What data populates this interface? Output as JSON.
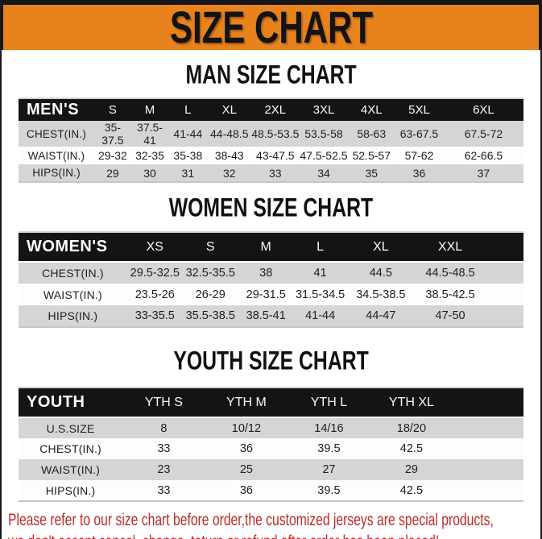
{
  "banner": {
    "title": "SIZE CHART"
  },
  "colors": {
    "banner_orange": "#E7821C",
    "header_black": "#141414",
    "row_gray": "#D5D5D5",
    "footer_red": "#BE2A28"
  },
  "sections": [
    {
      "heading": "MAN SIZE CHART",
      "table": {
        "header": [
          "MEN'S",
          "S",
          "M",
          "L",
          "XL",
          "2XL",
          "3XL",
          "4XL",
          "5XL",
          "6XL"
        ],
        "rows": [
          {
            "label": "CHEST(IN.)",
            "values": [
              "35-37.5",
              "37.5-41",
              "41-44",
              "44-48.5",
              "48.5-53.5",
              "53.5-58",
              "58-63",
              "63-67.5",
              "67.5-72"
            ]
          },
          {
            "label": "WAIST(IN.)",
            "values": [
              "29-32",
              "32-35",
              "35-38",
              "38-43",
              "43-47.5",
              "47.5-52.5",
              "52.5-57",
              "57-62",
              "62-66.5"
            ]
          },
          {
            "label": "HIPS(IN.)",
            "values": [
              "29",
              "30",
              "31",
              "32",
              "33",
              "34",
              "35",
              "36",
              "37"
            ]
          }
        ]
      }
    },
    {
      "heading": "WOMEN SIZE CHART",
      "table": {
        "header": [
          "WOMEN'S",
          "XS",
          "S",
          "M",
          "L",
          "XL",
          "XXL"
        ],
        "rows": [
          {
            "label": "CHEST(IN.)",
            "values": [
              "29.5-32.5",
              "32.5-35.5",
              "38",
              "41",
              "44.5",
              "44.5-48.5"
            ]
          },
          {
            "label": "WAIST(IN.)",
            "values": [
              "23.5-26",
              "26-29",
              "29-31.5",
              "31.5-34.5",
              "34.5-38.5",
              "38.5-42.5"
            ]
          },
          {
            "label": "HIPS(IN.)",
            "values": [
              "33-35.5",
              "35.5-38.5",
              "38.5-41",
              "41-44",
              "44-47",
              "47-50"
            ]
          }
        ]
      }
    },
    {
      "heading": "YOUTH SIZE CHART",
      "table": {
        "header": [
          "YOUTH",
          "YTH S",
          "YTH M",
          "YTH L",
          "YTH XL"
        ],
        "rows": [
          {
            "label": "U.S.SIZE",
            "values": [
              "8",
              "10/12",
              "14/16",
              "18/20"
            ]
          },
          {
            "label": "CHEST(IN.)",
            "values": [
              "33",
              "36",
              "39.5",
              "42.5"
            ]
          },
          {
            "label": "WAIST(IN.)",
            "values": [
              "23",
              "25",
              "27",
              "29"
            ]
          },
          {
            "label": "HIPS(IN.)",
            "values": [
              "33",
              "36",
              "39.5",
              "42.5"
            ]
          }
        ]
      }
    }
  ],
  "footer": {
    "line1": "Please refer to our size chart before order,the customized jerseys are special products,",
    "line2": "we don't accept cancel, change, teturn or refund after order has been placed!"
  }
}
